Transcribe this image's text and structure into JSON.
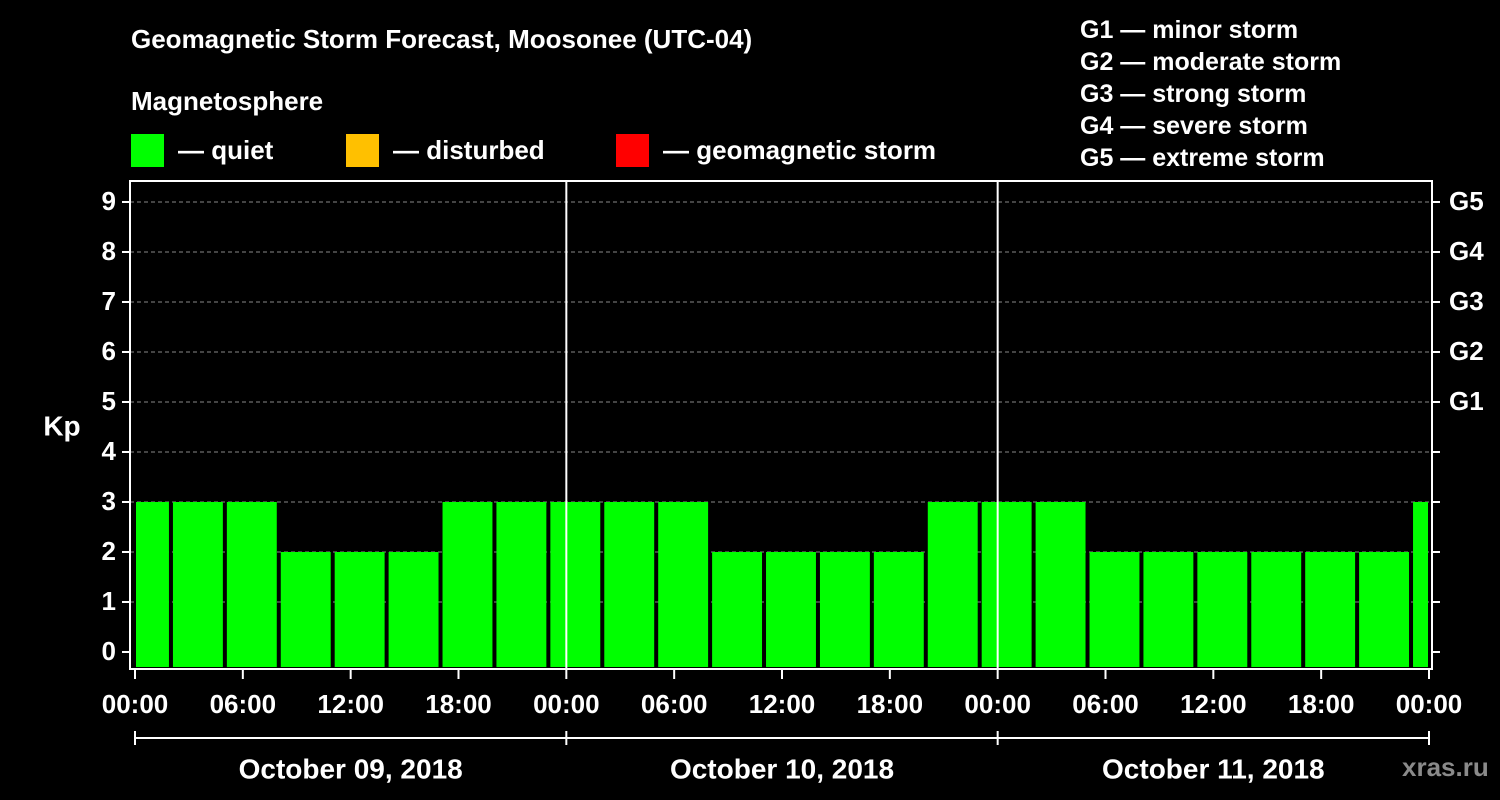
{
  "header": {
    "title": "Geomagnetic Storm Forecast, Moosonee (UTC-04)",
    "subtitle": "Magnetosphere"
  },
  "legend": [
    {
      "label": "— quiet",
      "color": "#00ff00"
    },
    {
      "label": "— disturbed",
      "color": "#ffc000"
    },
    {
      "label": "— geomagnetic storm",
      "color": "#ff0000"
    }
  ],
  "g_scale": [
    {
      "label": "G1 — minor storm"
    },
    {
      "label": "G2 — moderate storm"
    },
    {
      "label": "G3 — strong storm"
    },
    {
      "label": "G4 — severe storm"
    },
    {
      "label": "G5 — extreme storm"
    }
  ],
  "watermark": "xras.ru",
  "colors": {
    "quiet": "#00ff00",
    "disturbed": "#ffc000",
    "storm": "#ff0000",
    "background": "#000000",
    "axis": "#ffffff",
    "grid": "#888888"
  },
  "chart_data": {
    "type": "bar",
    "title": "Geomagnetic Storm Forecast, Moosonee (UTC-04)",
    "ylabel": "Kp",
    "xlabel": "",
    "ylim": [
      0,
      9
    ],
    "xlim_hours": [
      0,
      72
    ],
    "bar_interval_hours": 3,
    "y_ticks": [
      "0",
      "1",
      "2",
      "3",
      "4",
      "5",
      "6",
      "7",
      "8",
      "9"
    ],
    "g_levels": [
      {
        "kp": 5,
        "label": "G1"
      },
      {
        "kp": 6,
        "label": "G2"
      },
      {
        "kp": 7,
        "label": "G3"
      },
      {
        "kp": 8,
        "label": "G4"
      },
      {
        "kp": 9,
        "label": "G5"
      }
    ],
    "x_ticks": [
      {
        "hour": 0,
        "label": "00:00"
      },
      {
        "hour": 6,
        "label": "06:00"
      },
      {
        "hour": 12,
        "label": "12:00"
      },
      {
        "hour": 18,
        "label": "18:00"
      },
      {
        "hour": 24,
        "label": "00:00"
      },
      {
        "hour": 30,
        "label": "06:00"
      },
      {
        "hour": 36,
        "label": "12:00"
      },
      {
        "hour": 42,
        "label": "18:00"
      },
      {
        "hour": 48,
        "label": "00:00"
      },
      {
        "hour": 54,
        "label": "06:00"
      },
      {
        "hour": 60,
        "label": "12:00"
      },
      {
        "hour": 66,
        "label": "18:00"
      },
      {
        "hour": 72,
        "label": "00:00"
      }
    ],
    "day_labels": [
      {
        "start_hour": 0,
        "end_hour": 24,
        "label": "October 09, 2018"
      },
      {
        "start_hour": 24,
        "end_hour": 48,
        "label": "October 10, 2018"
      },
      {
        "start_hour": 48,
        "end_hour": 72,
        "label": "October 11, 2018"
      }
    ],
    "day_separators_hours": [
      24,
      48
    ],
    "series": [
      {
        "name": "Kp forecast",
        "bars": [
          {
            "start_hour": -1,
            "end_hour": 2,
            "value": 3
          },
          {
            "start_hour": 2,
            "end_hour": 5,
            "value": 3
          },
          {
            "start_hour": 5,
            "end_hour": 8,
            "value": 3
          },
          {
            "start_hour": 8,
            "end_hour": 11,
            "value": 2
          },
          {
            "start_hour": 11,
            "end_hour": 14,
            "value": 2
          },
          {
            "start_hour": 14,
            "end_hour": 17,
            "value": 2
          },
          {
            "start_hour": 17,
            "end_hour": 20,
            "value": 3
          },
          {
            "start_hour": 20,
            "end_hour": 23,
            "value": 3
          },
          {
            "start_hour": 23,
            "end_hour": 26,
            "value": 3
          },
          {
            "start_hour": 26,
            "end_hour": 29,
            "value": 3
          },
          {
            "start_hour": 29,
            "end_hour": 32,
            "value": 3
          },
          {
            "start_hour": 32,
            "end_hour": 35,
            "value": 2
          },
          {
            "start_hour": 35,
            "end_hour": 38,
            "value": 2
          },
          {
            "start_hour": 38,
            "end_hour": 41,
            "value": 2
          },
          {
            "start_hour": 41,
            "end_hour": 44,
            "value": 2
          },
          {
            "start_hour": 44,
            "end_hour": 47,
            "value": 3
          },
          {
            "start_hour": 47,
            "end_hour": 50,
            "value": 3
          },
          {
            "start_hour": 50,
            "end_hour": 53,
            "value": 3
          },
          {
            "start_hour": 53,
            "end_hour": 56,
            "value": 2
          },
          {
            "start_hour": 56,
            "end_hour": 59,
            "value": 2
          },
          {
            "start_hour": 59,
            "end_hour": 62,
            "value": 2
          },
          {
            "start_hour": 62,
            "end_hour": 65,
            "value": 2
          },
          {
            "start_hour": 65,
            "end_hour": 68,
            "value": 2
          },
          {
            "start_hour": 68,
            "end_hour": 71,
            "value": 2
          },
          {
            "start_hour": 71,
            "end_hour": 74,
            "value": 3
          }
        ]
      }
    ]
  }
}
